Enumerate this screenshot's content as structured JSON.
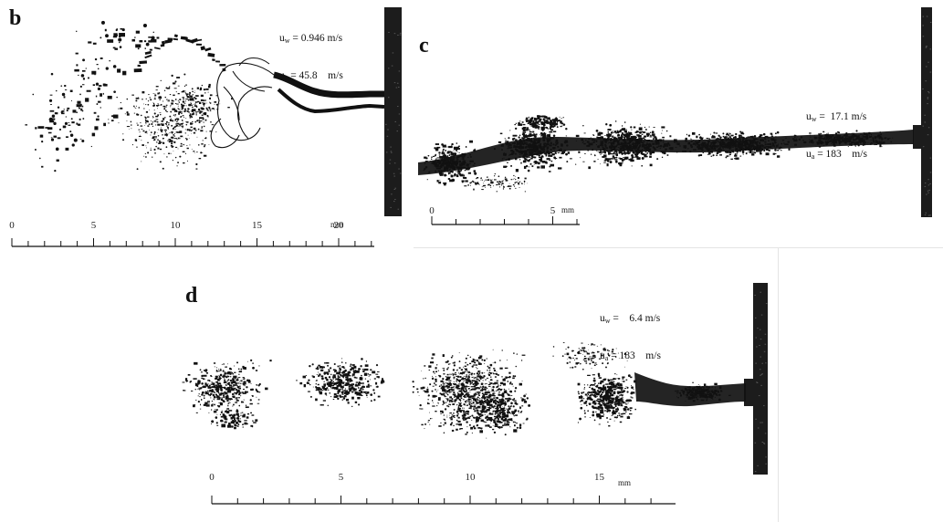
{
  "panels": [
    {
      "id": "b",
      "letter": "b",
      "uw_label": "u",
      "uw_sub": "w",
      "uw_value": "= 0.946 m/s",
      "ua_label": "u",
      "ua_sub": "a",
      "ua_value": "= 45.8    m/s",
      "scale": {
        "ticks": [
          "0",
          "5",
          "10",
          "15",
          "20"
        ],
        "unit": "mm",
        "max_mm": 22
      }
    },
    {
      "id": "c",
      "letter": "c",
      "uw_label": "u",
      "uw_sub": "w",
      "uw_value": "=  17.1 m/s",
      "ua_label": "u",
      "ua_sub": "a",
      "ua_value": "= 183    m/s",
      "scale": {
        "ticks": [
          "0",
          "5"
        ],
        "unit": "mm",
        "max_mm": 9
      }
    },
    {
      "id": "d",
      "letter": "d",
      "uw_label": "u",
      "uw_sub": "w",
      "uw_value": "=    6.4 m/s",
      "ua_label": "u",
      "ua_sub": "a",
      "ua_value": "= 183    m/s",
      "scale": {
        "ticks": [
          "0",
          "5",
          "10",
          "15"
        ],
        "unit": "mm",
        "max_mm": 18
      }
    }
  ],
  "colors": {
    "ink": "#111111",
    "nozzle": "#1c1c1c",
    "separator": "#e4e4e4"
  }
}
